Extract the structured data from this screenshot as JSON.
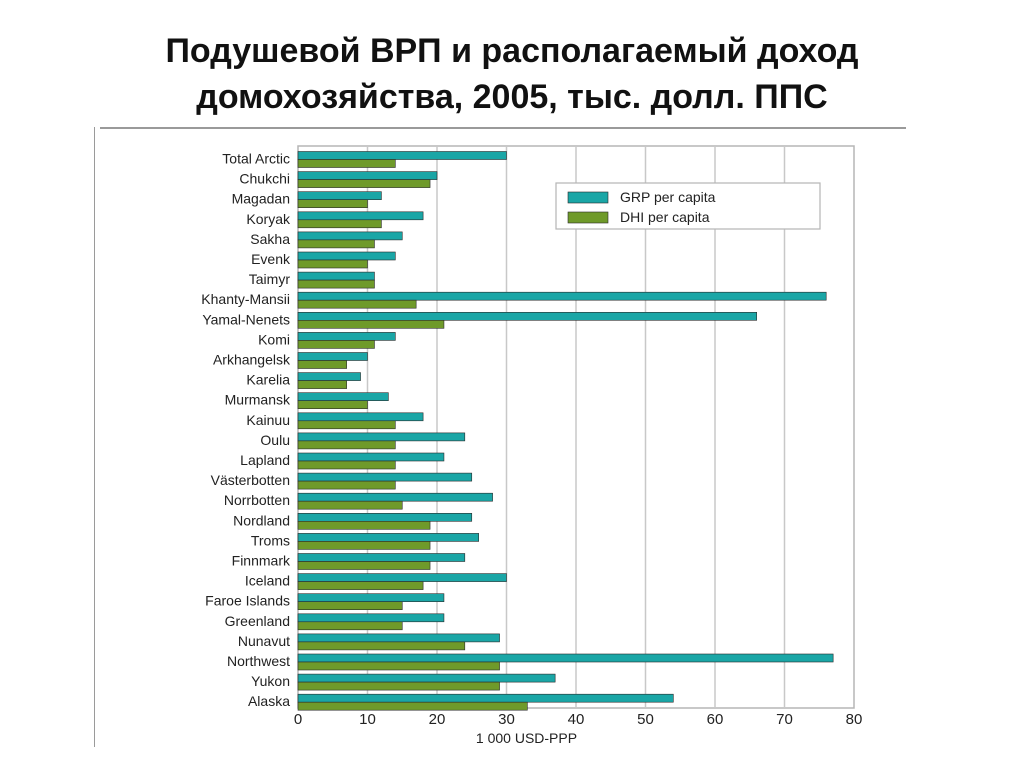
{
  "slide": {
    "title_line1": "Подушевой ВРП и располагаемый доход",
    "title_line2": "домохозяйства, 2005, тыс. долл. ППС"
  },
  "chart_data": {
    "type": "bar",
    "orientation": "horizontal",
    "categories": [
      "Total Arctic",
      "Chukchi",
      "Magadan",
      "Koryak",
      "Sakha",
      "Evenk",
      "Taimyr",
      "Khanty-Mansii",
      "Yamal-Nenets",
      "Komi",
      "Arkhangelsk",
      "Karelia",
      "Murmansk",
      "Kainuu",
      "Oulu",
      "Lapland",
      "Västerbotten",
      "Norrbotten",
      "Nordland",
      "Troms",
      "Finnmark",
      "Iceland",
      "Faroe Islands",
      "Greenland",
      "Nunavut",
      "Northwest",
      "Yukon",
      "Alaska"
    ],
    "series": [
      {
        "name": "GRP per capita",
        "color": "#1aa6a6",
        "values": [
          30,
          20,
          12,
          18,
          15,
          14,
          11,
          76,
          66,
          14,
          10,
          9,
          13,
          18,
          24,
          21,
          25,
          28,
          25,
          26,
          24,
          30,
          21,
          21,
          29,
          77,
          37,
          54
        ]
      },
      {
        "name": "DHI per capita",
        "color": "#6f9a2a",
        "values": [
          14,
          19,
          10,
          12,
          11,
          10,
          11,
          17,
          21,
          11,
          7,
          7,
          10,
          14,
          14,
          14,
          14,
          15,
          19,
          19,
          19,
          18,
          15,
          15,
          24,
          29,
          29,
          33
        ]
      }
    ],
    "xlim": [
      0,
      80
    ],
    "xticks": [
      0,
      10,
      20,
      30,
      40,
      50,
      60,
      70,
      80
    ],
    "xlabel": "1 000 USD-PPP",
    "grid": true,
    "legend": "top-right"
  }
}
